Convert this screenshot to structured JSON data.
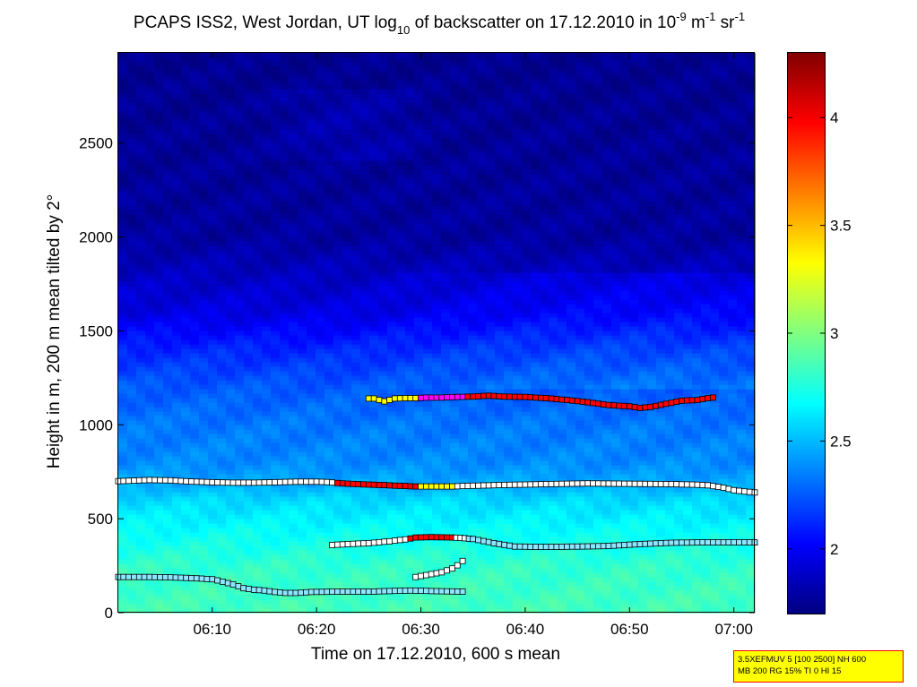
{
  "chart_data": {
    "type": "heatmap",
    "title": {
      "prefix": "PCAPS ISS2, West Jordan, UT log",
      "sub": "10",
      "mid1": " of backscatter on 17.12.2010 in 10",
      "sup1": "-9",
      "mid2": " m",
      "sup2": "-1",
      "mid3": " sr",
      "sup3": "-1"
    },
    "xlabel": "Time on 17.12.2010, 600 s mean",
    "ylabel": "Height in m, 200 m mean tilted by 2°",
    "x_unit": "minutes after 06:00",
    "xlim": [
      1,
      62
    ],
    "ylim": [
      0,
      2980
    ],
    "x_ticks": [
      {
        "value": 10,
        "label": "06:10"
      },
      {
        "value": 20,
        "label": "06:20"
      },
      {
        "value": 30,
        "label": "06:30"
      },
      {
        "value": 40,
        "label": "06:40"
      },
      {
        "value": 50,
        "label": "06:50"
      },
      {
        "value": 60,
        "label": "07:00"
      }
    ],
    "y_ticks": [
      {
        "value": 0,
        "label": "0"
      },
      {
        "value": 500,
        "label": "500"
      },
      {
        "value": 1000,
        "label": "1000"
      },
      {
        "value": 1500,
        "label": "1500"
      },
      {
        "value": 2000,
        "label": "2000"
      },
      {
        "value": 2500,
        "label": "2500"
      }
    ],
    "colorbar": {
      "colormap": "jet",
      "range": [
        1.7,
        4.3
      ],
      "ticks": [
        {
          "value": 2,
          "label": "2"
        },
        {
          "value": 2.5,
          "label": "2.5"
        },
        {
          "value": 3,
          "label": "3"
        },
        {
          "value": 3.5,
          "label": "3.5"
        },
        {
          "value": 4,
          "label": "4"
        }
      ]
    },
    "field_profile": {
      "heights": [
        0,
        250,
        450,
        600,
        700,
        800,
        1000,
        1200,
        1400,
        1600,
        2000,
        3000
      ],
      "values": [
        2.85,
        2.8,
        2.68,
        2.58,
        2.45,
        2.38,
        2.33,
        2.25,
        2.12,
        1.95,
        1.78,
        1.74
      ]
    },
    "layer_colors": {
      "1": "#ffffff",
      "2": "#8ce6ff",
      "3": "#ffff00",
      "4": "#ff00ff",
      "5": "#ff0000"
    },
    "layers": [
      {
        "points": [
          [
            1,
            190,
            2
          ],
          [
            4,
            190,
            2
          ],
          [
            6,
            188,
            2
          ],
          [
            8,
            184,
            2
          ],
          [
            10,
            178,
            2
          ],
          [
            11,
            165,
            2
          ],
          [
            12,
            150,
            2
          ],
          [
            13,
            130,
            2
          ],
          [
            14,
            122,
            2
          ],
          [
            15,
            118,
            2
          ],
          [
            16,
            110,
            2
          ],
          [
            17,
            105,
            2
          ],
          [
            18,
            105,
            2
          ],
          [
            19,
            108,
            2
          ]
        ]
      },
      {
        "points": [
          [
            19.5,
            110,
            2
          ],
          [
            22,
            112,
            2
          ],
          [
            25,
            112,
            2
          ],
          [
            27,
            115,
            2
          ],
          [
            29,
            118,
            2
          ],
          [
            31,
            115,
            2
          ],
          [
            34,
            112,
            2
          ]
        ]
      },
      {
        "points": [
          [
            29.5,
            190,
            1
          ],
          [
            31,
            205,
            1
          ],
          [
            32,
            215,
            1
          ],
          [
            33,
            235,
            1
          ],
          [
            33.5,
            252,
            1
          ],
          [
            34,
            275,
            1
          ]
        ]
      },
      {
        "points": [
          [
            21.5,
            360,
            1
          ],
          [
            23,
            365,
            1
          ],
          [
            25,
            370,
            1
          ],
          [
            27,
            380,
            1
          ],
          [
            28.5,
            390,
            1
          ],
          [
            29.5,
            400,
            5
          ],
          [
            31,
            402,
            5
          ],
          [
            33,
            400,
            5
          ],
          [
            33.8,
            398,
            1
          ],
          [
            35,
            392,
            2
          ],
          [
            37,
            370,
            2
          ],
          [
            39,
            352,
            2
          ],
          [
            42,
            350,
            2
          ],
          [
            45,
            352,
            2
          ],
          [
            48,
            355,
            2
          ],
          [
            51,
            365,
            2
          ],
          [
            54,
            372,
            2
          ],
          [
            57,
            374,
            2
          ],
          [
            59,
            375,
            2
          ],
          [
            62,
            374,
            2
          ]
        ]
      },
      {
        "points": [
          [
            1,
            700,
            1
          ],
          [
            2,
            702,
            1
          ],
          [
            4,
            706,
            1
          ],
          [
            6,
            704,
            1
          ],
          [
            8,
            698,
            1
          ],
          [
            10,
            694,
            1
          ],
          [
            12,
            692,
            1
          ],
          [
            14,
            692,
            1
          ],
          [
            16,
            694,
            1
          ],
          [
            18,
            697,
            1
          ],
          [
            20,
            697,
            1
          ],
          [
            21,
            695,
            1
          ],
          [
            22.5,
            688,
            5
          ],
          [
            24,
            684,
            5
          ],
          [
            26,
            680,
            5
          ],
          [
            28,
            675,
            5
          ],
          [
            29.5,
            672,
            5
          ],
          [
            30,
            672,
            3
          ],
          [
            31.5,
            672,
            3
          ],
          [
            33,
            672,
            3
          ],
          [
            34,
            674,
            1
          ],
          [
            36,
            677,
            1
          ],
          [
            38,
            680,
            1
          ],
          [
            40,
            682,
            1
          ],
          [
            42,
            684,
            1
          ],
          [
            44,
            686,
            1
          ],
          [
            46,
            688,
            1
          ],
          [
            48,
            687,
            1
          ],
          [
            50,
            686,
            1
          ],
          [
            52,
            685,
            1
          ],
          [
            54,
            684,
            1
          ],
          [
            56,
            682,
            1
          ],
          [
            57.5,
            678,
            1
          ],
          [
            59,
            665,
            1
          ],
          [
            60,
            652,
            1
          ],
          [
            61,
            645,
            1
          ],
          [
            62,
            640,
            1
          ]
        ]
      },
      {
        "points": [
          [
            25,
            1140,
            3
          ],
          [
            25.5,
            1140,
            3
          ],
          [
            26.5,
            1125,
            3
          ],
          [
            27.5,
            1140,
            3
          ],
          [
            28.5,
            1142,
            3
          ],
          [
            29.5,
            1142,
            3
          ],
          [
            30.5,
            1145,
            4
          ],
          [
            32,
            1145,
            4
          ],
          [
            33.5,
            1148,
            4
          ],
          [
            35,
            1150,
            5
          ],
          [
            36.5,
            1155,
            5
          ],
          [
            38,
            1150,
            5
          ],
          [
            40,
            1148,
            5
          ],
          [
            42,
            1142,
            5
          ],
          [
            44,
            1132,
            5
          ],
          [
            46,
            1120,
            5
          ],
          [
            48,
            1105,
            5
          ],
          [
            50,
            1098,
            5
          ],
          [
            51,
            1090,
            5
          ],
          [
            52,
            1095,
            5
          ],
          [
            53.5,
            1112,
            5
          ],
          [
            55,
            1128,
            5
          ],
          [
            56.5,
            1132,
            5
          ],
          [
            57.5,
            1142,
            5
          ],
          [
            58,
            1145,
            5
          ]
        ]
      }
    ]
  },
  "infobox": {
    "line1": "3.5XEFMUV 5 [100 2500] NH 600",
    "line2": "MB 200 RG 15% TI 0 HI 15"
  }
}
